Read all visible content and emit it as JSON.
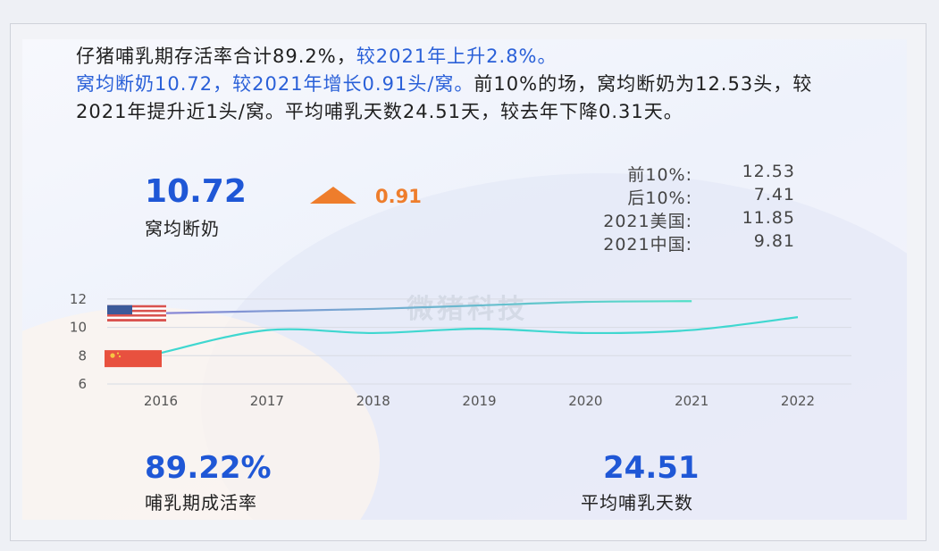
{
  "paragraph": {
    "part1": "仔猪哺乳期存活率合计89.2%，",
    "part2": "较2021年上升2.8%。",
    "part3": "窝均断奶10.72，较2021年增长0.91头/窝。",
    "part4": "前10%的场，窝均断奶为12.53头，较2021年提升近1头/窝。平均哺乳天数24.51天，较去年下降0.31天。"
  },
  "kpi_weaning": {
    "value": "10.72",
    "change": "0.91",
    "label": "窝均断奶",
    "trend_icon": "triangle-up-icon",
    "change_color": "#ee7d2c"
  },
  "comparisons": [
    {
      "label": "前10%:",
      "value": "12.53"
    },
    {
      "label": "后10%:",
      "value": "7.41"
    },
    {
      "label": "2021美国:",
      "value": "11.85"
    },
    {
      "label": "2021中国:",
      "value": "9.81"
    }
  ],
  "kpi_survival": {
    "value": "89.22%",
    "label": "哺乳期成活率"
  },
  "kpi_days": {
    "value": "24.51",
    "label": "平均哺乳天数"
  },
  "watermark": "微猪科技",
  "colors": {
    "accent": "#1f57d6",
    "paragraph_blue": "#2a60d8",
    "up": "#ee7d2c",
    "us_line": "#8a86d6",
    "us_line_end": "#52e0c8",
    "cn_line": "#3fd7d0"
  },
  "chart_data": {
    "type": "line",
    "x": [
      "2016",
      "2017",
      "2018",
      "2019",
      "2020",
      "2021",
      "2022"
    ],
    "ylim": [
      6,
      13
    ],
    "yticks": [
      6,
      8,
      10,
      12
    ],
    "grid": true,
    "series": [
      {
        "id": "us",
        "icon": "us-flag-icon",
        "values": [
          11.0,
          11.15,
          11.3,
          11.55,
          11.8,
          11.85,
          null
        ]
      },
      {
        "id": "cn",
        "icon": "china-flag-icon",
        "values": [
          8.2,
          9.8,
          9.6,
          9.9,
          9.6,
          9.81,
          10.72
        ]
      }
    ]
  }
}
